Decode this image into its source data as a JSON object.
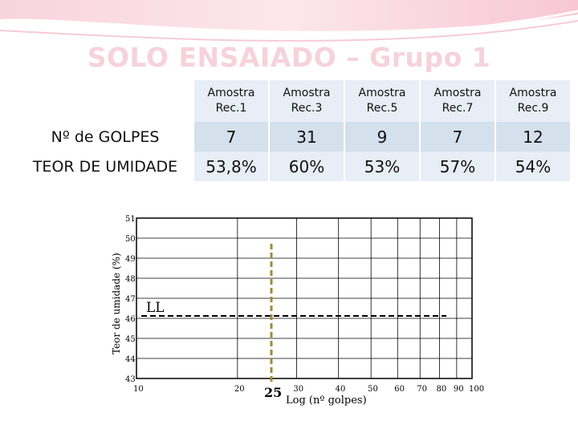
{
  "title": "SOLO ENSAIADO – Grupo 1",
  "table": {
    "headers": [
      [
        "Amostra",
        "Rec.1"
      ],
      [
        "Amostra",
        "Rec.3"
      ],
      [
        "Amostra",
        "Rec.5"
      ],
      [
        "Amostra",
        "Rec.7"
      ],
      [
        "Amostra",
        "Rec.9"
      ]
    ],
    "rows": [
      {
        "label": "Nº de GOLPES",
        "values": [
          "7",
          "31",
          "9",
          "7",
          "12"
        ]
      },
      {
        "label": "TEOR DE UMIDADE",
        "values": [
          "53,8%",
          "60%",
          "53%",
          "57%",
          "54%"
        ]
      }
    ]
  },
  "chart": {
    "ylabel": "Teor de umidade (%)",
    "xlabel": "Log (nº golpes)",
    "ytick_labels": [
      "51",
      "50",
      "49",
      "48",
      "47",
      "46",
      "45",
      "44",
      "43"
    ],
    "xtick_labels": [
      "10",
      "20",
      "30",
      "40",
      "50",
      "60",
      "70",
      "80",
      "90",
      "100"
    ],
    "ll_label": "LL",
    "marker_label": "25",
    "colors": {
      "ll_line": "#000000",
      "marker_line": "#a08a3a",
      "title": "#f6d2dc"
    }
  }
}
